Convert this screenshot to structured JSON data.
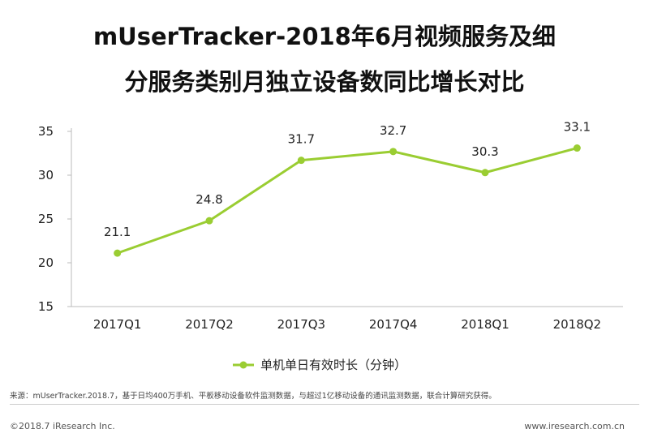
{
  "title": {
    "line1": "mUserTracker-2018年6月视频服务及细",
    "line2": "分服务类别月独立设备数同比增长对比"
  },
  "colors": {
    "series": "#9ACD32",
    "axis": "#bbbbbb",
    "text": "#222222"
  },
  "chart_data": {
    "type": "line",
    "categories": [
      "2017Q1",
      "2017Q2",
      "2017Q3",
      "2017Q4",
      "2018Q1",
      "2018Q2"
    ],
    "series": [
      {
        "name": "单机单日有效时长（分钟）",
        "values": [
          21.1,
          24.8,
          31.7,
          32.7,
          30.3,
          33.1
        ]
      }
    ],
    "data_labels": [
      "21.1",
      "24.8",
      "31.7",
      "32.7",
      "30.3",
      "33.1"
    ],
    "ylim": [
      15,
      35
    ],
    "yticks": [
      15,
      20,
      25,
      30,
      35
    ],
    "grid": false,
    "legend_position": "bottom"
  },
  "source_text": "来源：mUserTracker.2018.7，基于日均400万手机、平板移动设备软件监测数据，与超过1亿移动设备的通讯监测数据，联合计算研究获得。",
  "footer": {
    "copyright": "©2018.7 iResearch Inc.",
    "website": "www.iresearch.com.cn"
  }
}
